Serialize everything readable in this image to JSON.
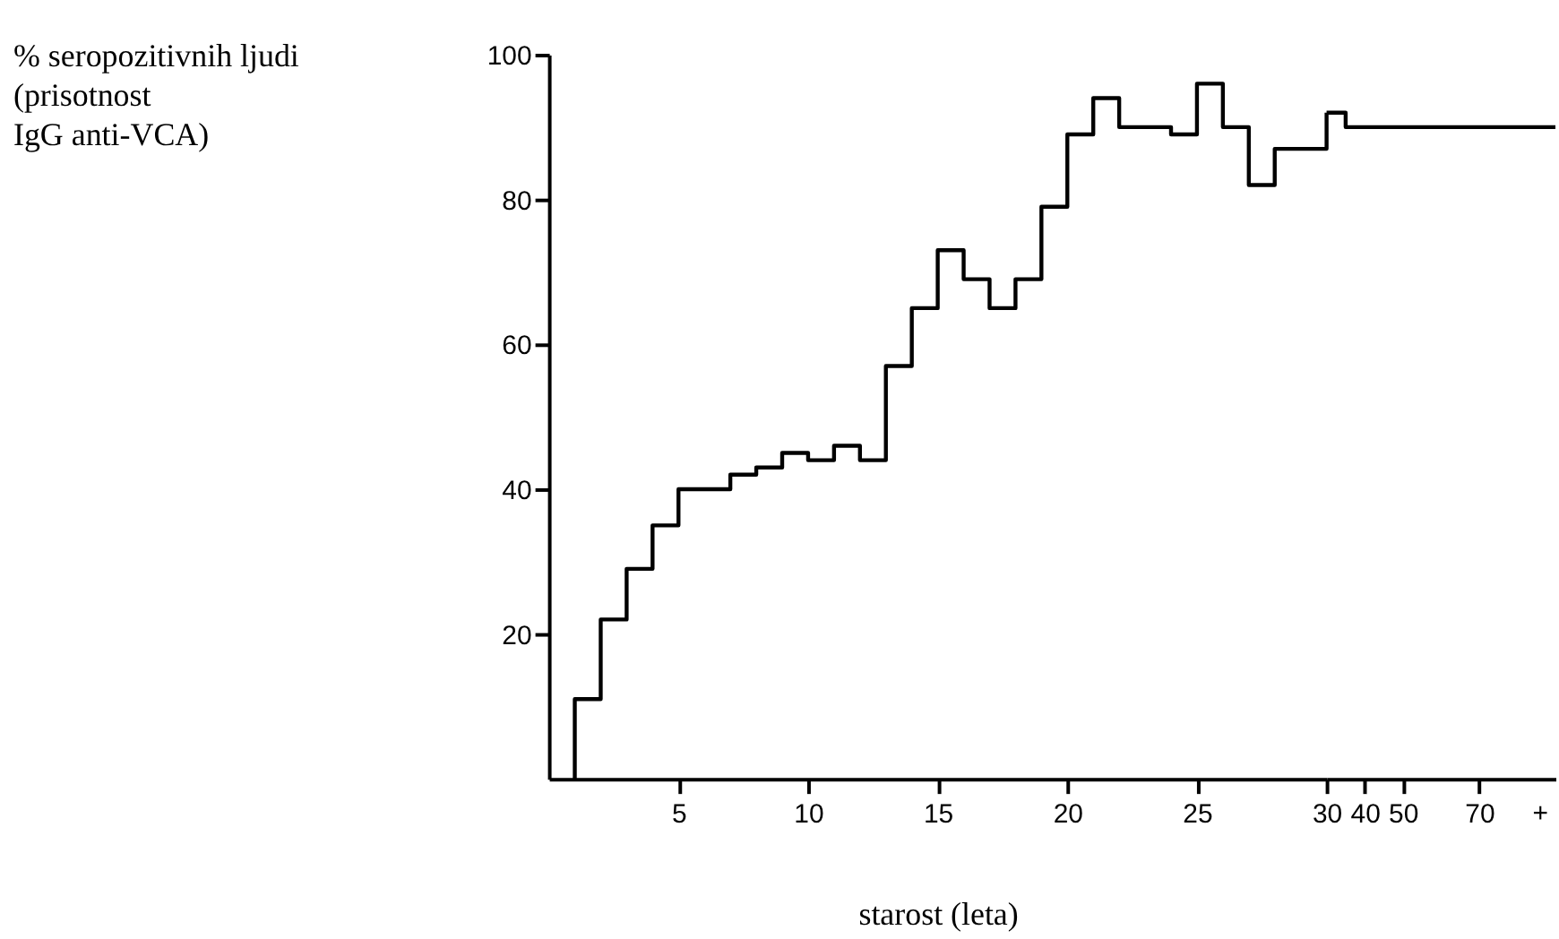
{
  "chart_data": [
    {
      "type": "step",
      "xlabel": "starost (leta)",
      "ylabel": "% seropozitivnih ljudi\n(prisotnost\nIgG anti-VCA)",
      "x": [
        1,
        1,
        2,
        3,
        4,
        5,
        7,
        8,
        9,
        10,
        11,
        12,
        13,
        14,
        15,
        16,
        17,
        18,
        19,
        20,
        21,
        22,
        24,
        25,
        26,
        27,
        28,
        30
      ],
      "series": [
        {
          "color": "#000000",
          "values": [
            0,
            11,
            22,
            29,
            35,
            40,
            42,
            43,
            45,
            44,
            46,
            44,
            57,
            65,
            73,
            69,
            65,
            69,
            79,
            89,
            94,
            90,
            89,
            96,
            90,
            82,
            87,
            92
          ]
        }
      ],
      "xlim": [
        0,
        30
      ],
      "xticks": [
        5,
        10,
        15,
        20,
        25,
        30
      ],
      "ylim": [
        0,
        100
      ],
      "yticks": [
        20,
        40,
        60,
        80,
        100
      ],
      "grid": false,
      "marker": "none",
      "line_style": "solid"
    },
    {
      "type": "step",
      "annotations": [
        "+"
      ],
      "x": [
        30,
        35,
        90
      ],
      "series": [
        {
          "color": "#000000",
          "values": [
            92,
            90,
            90
          ]
        }
      ],
      "xlim": [
        30,
        90
      ],
      "xticks": [
        40,
        50,
        70
      ],
      "ylim": [
        0,
        100
      ],
      "tick_labels": "x",
      "grid": false,
      "marker": "none",
      "line_style": "solid"
    }
  ]
}
